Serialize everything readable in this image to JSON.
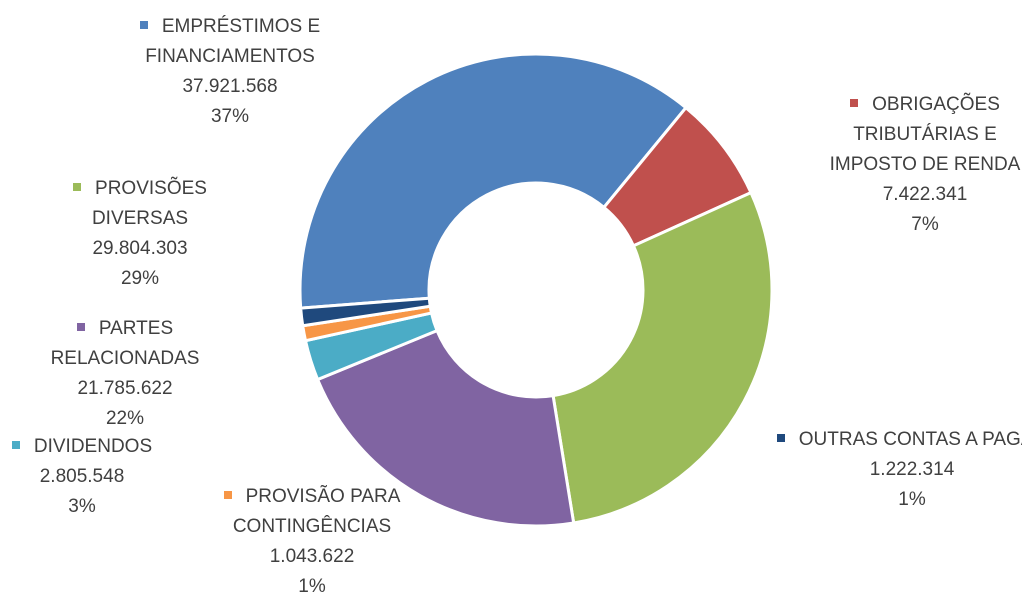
{
  "chart_data": {
    "type": "donut",
    "categories": [
      "EMPRÉSTIMOS E FINANCIAMENTOS",
      "OBRIGAÇÕES TRIBUTÁRIAS E IMPOSTO DE RENDA",
      "PROVISÕES DIVERSAS",
      "PARTES RELACIONADAS",
      "DIVIDENDOS",
      "PROVISÃO PARA CONTINGÊNCIAS",
      "OUTRAS CONTAS A PAGAR"
    ],
    "values": [
      37921568,
      7422341,
      29804303,
      21785622,
      2805548,
      1043622,
      1222314
    ],
    "value_labels": [
      "37.921.568",
      "7.422.341",
      "29.804.303",
      "21.785.622",
      "2.805.548",
      "1.043.622",
      "1.222.314"
    ],
    "percent_labels": [
      "37%",
      "7%",
      "29%",
      "22%",
      "3%",
      "1%",
      "1%"
    ],
    "colors": [
      "#4f81bd",
      "#c0504d",
      "#9bbb59",
      "#8064a2",
      "#4bacc6",
      "#f79646",
      "#1f497d"
    ]
  }
}
